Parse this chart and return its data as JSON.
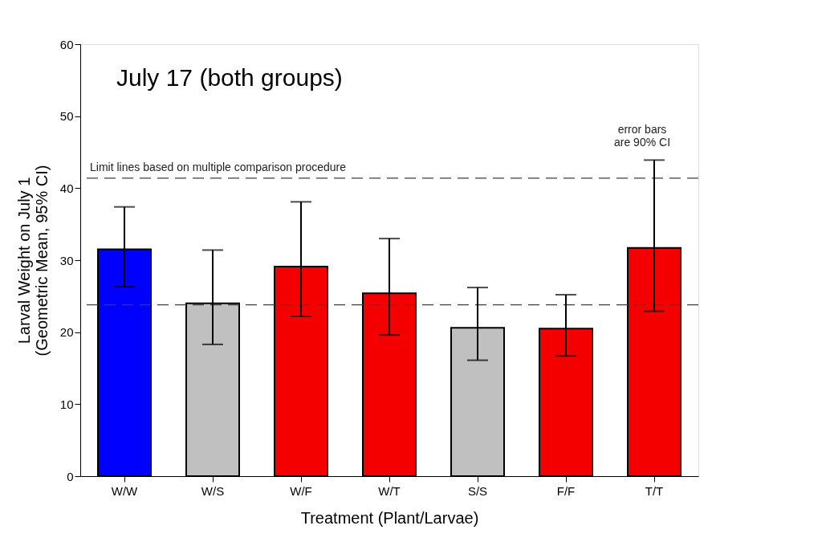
{
  "chart_data": {
    "type": "bar",
    "title": "July 17 (both groups)",
    "xlabel": "Treatment (Plant/Larvae)",
    "ylabel": "Larval Weight on July 1\n(Geometric Mean, 95% CI)",
    "categories": [
      "W/W",
      "W/S",
      "W/F",
      "W/T",
      "S/S",
      "F/F",
      "T/T"
    ],
    "values": [
      31.5,
      24.0,
      29.1,
      25.4,
      20.6,
      20.5,
      31.7
    ],
    "colors": [
      "#0000ff",
      "#c0c0c0",
      "#f50000",
      "#f50000",
      "#c0c0c0",
      "#f50000",
      "#f50000"
    ],
    "errors": [
      [
        26.3,
        37.4
      ],
      [
        18.3,
        31.4
      ],
      [
        22.2,
        38.1
      ],
      [
        19.6,
        33.0
      ],
      [
        16.1,
        26.2
      ],
      [
        16.7,
        25.2
      ],
      [
        22.9,
        43.9
      ]
    ],
    "ylim": [
      0,
      60
    ],
    "yticks": [
      0,
      10,
      20,
      30,
      40,
      50,
      60
    ],
    "grid": false,
    "ref_lines": [
      {
        "axis": "y",
        "value": 41.4,
        "label": "Limit lines based on multiple comparison procedure",
        "color": "#404040",
        "line_style": "dashed"
      },
      {
        "axis": "y",
        "value": 23.8,
        "label": null,
        "color": "#404040",
        "line_style": "dashed"
      }
    ],
    "annotations": [
      "error bars\nare 90% CI"
    ]
  }
}
